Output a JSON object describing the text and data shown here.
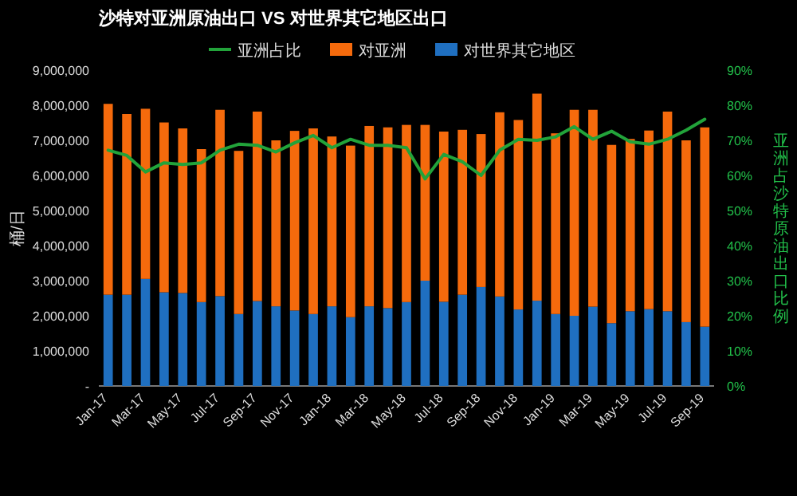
{
  "chart_data": {
    "type": "bar",
    "stacked": true,
    "title": "沙特对亚洲原油出口 VS 对世界其它地区出口",
    "ylabel": "桶/日",
    "y2label": "亚洲占沙特原油出口比例",
    "categories": [
      "Jan-17",
      null,
      "Mar-17",
      null,
      "May-17",
      null,
      "Jul-17",
      null,
      "Sep-17",
      null,
      "Nov-17",
      null,
      "Jan-18",
      null,
      "Mar-18",
      null,
      "May-18",
      null,
      "Jul-18",
      null,
      "Sep-18",
      null,
      "Nov-18",
      null,
      "Jan-19",
      null,
      "Mar-19",
      null,
      "May-19",
      null,
      "Jul-19",
      null,
      "Sep-19"
    ],
    "series": [
      {
        "name": "对世界其它地区",
        "color": "#1f6fc0",
        "values": [
          2600000,
          2600000,
          3050000,
          2670000,
          2650000,
          2390000,
          2560000,
          2050000,
          2420000,
          2270000,
          2150000,
          2050000,
          2270000,
          1960000,
          2270000,
          2220000,
          2390000,
          3000000,
          2400000,
          2600000,
          2820000,
          2550000,
          2180000,
          2430000,
          2050000,
          2000000,
          2260000,
          1790000,
          2130000,
          2190000,
          2130000,
          1820000,
          1690000
        ]
      },
      {
        "name": "对亚洲",
        "color": "#f56a0c",
        "values": [
          5440000,
          5150000,
          4850000,
          4840000,
          4690000,
          4360000,
          5310000,
          4650000,
          5400000,
          4730000,
          5120000,
          5290000,
          4840000,
          4890000,
          5140000,
          5150000,
          5050000,
          4440000,
          4850000,
          4700000,
          4360000,
          5250000,
          5400000,
          5900000,
          5150000,
          5870000,
          5610000,
          5080000,
          4910000,
          5090000,
          5690000,
          5180000,
          5680000
        ]
      },
      {
        "name": "亚洲占比",
        "type": "line",
        "axis": "y2",
        "color": "#22a33a",
        "values": [
          67.2,
          65.7,
          61,
          63.6,
          63.1,
          63.6,
          67.2,
          68.9,
          68.6,
          66.7,
          69.3,
          71.4,
          67.9,
          70.3,
          68.6,
          68.6,
          67.9,
          59,
          66,
          63.9,
          60,
          67.2,
          70.3,
          70,
          71,
          73.9,
          70.3,
          72.6,
          69.6,
          68.9,
          70.3,
          72.9,
          76
        ]
      }
    ],
    "ylim": [
      0,
      9000000
    ],
    "yticks": [
      {
        "value": 0,
        "label": "-"
      },
      {
        "value": 1000000,
        "label": "1,000,000"
      },
      {
        "value": 2000000,
        "label": "2,000,000"
      },
      {
        "value": 3000000,
        "label": "3,000,000"
      },
      {
        "value": 4000000,
        "label": "4,000,000"
      },
      {
        "value": 5000000,
        "label": "5,000,000"
      },
      {
        "value": 6000000,
        "label": "6,000,000"
      },
      {
        "value": 7000000,
        "label": "7,000,000"
      },
      {
        "value": 8000000,
        "label": "8,000,000"
      },
      {
        "value": 9000000,
        "label": "9,000,000"
      }
    ],
    "y2lim": [
      0,
      90
    ],
    "y2ticks": [
      {
        "value": 0,
        "label": "0%"
      },
      {
        "value": 10,
        "label": "10%"
      },
      {
        "value": 20,
        "label": "20%"
      },
      {
        "value": 30,
        "label": "30%"
      },
      {
        "value": 40,
        "label": "40%"
      },
      {
        "value": 50,
        "label": "50%"
      },
      {
        "value": 60,
        "label": "60%"
      },
      {
        "value": 70,
        "label": "70%"
      },
      {
        "value": 80,
        "label": "80%"
      },
      {
        "value": 90,
        "label": "90%"
      }
    ],
    "legend": "top",
    "grid": false,
    "marker": "none"
  }
}
